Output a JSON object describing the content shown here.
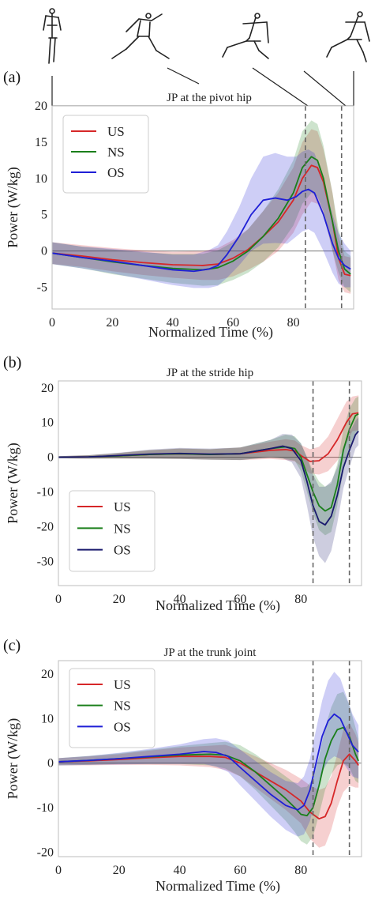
{
  "figure": {
    "stick_figures": [
      "stick-figure-phase-1",
      "stick-figure-phase-2",
      "stick-figure-phase-3",
      "stick-figure-phase-4"
    ],
    "colors": {
      "US": "#d62728",
      "NS": "#1a7f1a",
      "OS": "#1f1fd6",
      "OS_b": "#1a1a6e"
    }
  },
  "chart_data": [
    {
      "type": "line",
      "panel_label": "(a)",
      "title": "JP at the pivot hip",
      "xlabel": "Normalized Time (%)",
      "ylabel": "Power (W/kg)",
      "xlim": [
        0,
        100
      ],
      "ylim": [
        -8,
        20
      ],
      "xticks": [
        "0",
        "20",
        "40",
        "60",
        "80"
      ],
      "yticks": [
        "20",
        "15",
        "10",
        "5",
        "0",
        "-5"
      ],
      "ytick_values": [
        20,
        15,
        10,
        5,
        0,
        -5
      ],
      "vlines": [
        84,
        96
      ],
      "grid": true,
      "legend_position": "top-left",
      "series": [
        {
          "name": "US",
          "color": "#d62728",
          "x": [
            0,
            10,
            20,
            30,
            40,
            50,
            55,
            60,
            65,
            70,
            75,
            80,
            83,
            86,
            88,
            90,
            93,
            95,
            97,
            99
          ],
          "y": [
            -0.3,
            -0.7,
            -1.2,
            -1.6,
            -1.9,
            -2.0,
            -1.8,
            -1.0,
            0.2,
            2.0,
            4.0,
            7.0,
            10.0,
            11.8,
            11.5,
            9.5,
            4.0,
            -1.0,
            -3.2,
            -3.4
          ],
          "band": [
            1.5,
            1.5,
            1.6,
            1.7,
            1.8,
            2.0,
            2.2,
            2.5,
            2.8,
            3.5,
            4.0,
            4.5,
            5.0,
            5.0,
            5.0,
            4.5,
            4.0,
            3.0,
            2.5,
            2.5
          ]
        },
        {
          "name": "NS",
          "color": "#1a7f1a",
          "x": [
            0,
            10,
            20,
            30,
            40,
            50,
            55,
            60,
            65,
            70,
            75,
            80,
            83,
            86,
            88,
            90,
            93,
            95,
            97,
            99
          ],
          "y": [
            -0.3,
            -0.9,
            -1.5,
            -2.0,
            -2.4,
            -2.6,
            -2.3,
            -1.4,
            0.0,
            2.0,
            4.5,
            8.0,
            11.5,
            13.0,
            12.5,
            10.0,
            4.0,
            0.0,
            -2.5,
            -3.2
          ],
          "band": [
            1.5,
            1.5,
            1.7,
            1.8,
            2.0,
            2.2,
            2.4,
            2.6,
            3.0,
            3.5,
            4.0,
            4.5,
            5.0,
            5.0,
            5.0,
            4.5,
            4.0,
            3.0,
            2.5,
            2.5
          ]
        },
        {
          "name": "OS",
          "color": "#1f1fd6",
          "x": [
            0,
            10,
            20,
            30,
            40,
            47,
            52,
            55,
            58,
            62,
            66,
            70,
            74,
            78,
            81,
            83,
            85,
            87,
            90,
            93,
            95,
            97,
            99
          ],
          "y": [
            -0.3,
            -0.9,
            -1.4,
            -2.0,
            -2.6,
            -2.8,
            -2.5,
            -2.0,
            -0.5,
            2.0,
            5.0,
            7.0,
            7.3,
            7.0,
            7.5,
            8.2,
            8.5,
            8.0,
            5.0,
            1.0,
            -1.0,
            -2.0,
            -2.5
          ],
          "band": [
            1.5,
            1.5,
            1.7,
            1.9,
            2.1,
            2.3,
            2.6,
            2.8,
            3.2,
            4.0,
            5.0,
            6.0,
            6.2,
            6.0,
            5.5,
            5.5,
            5.5,
            5.5,
            5.0,
            4.0,
            3.5,
            3.0,
            2.5
          ]
        }
      ]
    },
    {
      "type": "line",
      "panel_label": "(b)",
      "title": "JP at the stride hip",
      "xlabel": "Normalized Time (%)",
      "ylabel": "Power (W/kg)",
      "xlim": [
        0,
        100
      ],
      "ylim": [
        -37,
        22
      ],
      "xticks": [
        "0",
        "20",
        "40",
        "60",
        "80"
      ],
      "yticks": [
        "20",
        "10",
        "0",
        "-10",
        "-20",
        "-30"
      ],
      "ytick_values": [
        20,
        10,
        0,
        -10,
        -20,
        -30
      ],
      "vlines": [
        84,
        96
      ],
      "grid": true,
      "legend_position": "bottom-left",
      "series": [
        {
          "name": "US",
          "color": "#d62728",
          "x": [
            0,
            10,
            20,
            30,
            40,
            50,
            60,
            70,
            75,
            78,
            80,
            83,
            86,
            89,
            92,
            95,
            97,
            99
          ],
          "y": [
            0,
            0.1,
            0.4,
            0.8,
            1.0,
            0.8,
            1.0,
            2.0,
            2.2,
            1.8,
            0.5,
            -1.2,
            -1.0,
            1.0,
            5.0,
            10.0,
            12.5,
            12.8
          ],
          "band": [
            0.3,
            0.5,
            0.8,
            1.2,
            1.5,
            1.5,
            1.8,
            2.5,
            3.0,
            3.0,
            3.0,
            3.5,
            4.0,
            5.0,
            6.0,
            6.0,
            5.0,
            5.0
          ]
        },
        {
          "name": "NS",
          "color": "#1a7f1a",
          "x": [
            0,
            10,
            20,
            30,
            40,
            50,
            60,
            70,
            75,
            78,
            80,
            82,
            84,
            86,
            88,
            90,
            92,
            94,
            96,
            98,
            99
          ],
          "y": [
            0,
            0.1,
            0.4,
            0.8,
            1.0,
            0.8,
            1.0,
            2.5,
            3.0,
            2.5,
            0.0,
            -5.0,
            -10.0,
            -14.0,
            -15.5,
            -14.5,
            -8.0,
            2.0,
            8.0,
            12.0,
            12.5
          ],
          "band": [
            0.3,
            0.5,
            0.8,
            1.2,
            1.5,
            1.5,
            1.8,
            2.5,
            3.5,
            3.5,
            4.0,
            5.0,
            6.0,
            7.0,
            7.0,
            7.0,
            6.0,
            6.0,
            6.0,
            5.0,
            5.0
          ]
        },
        {
          "name": "OS",
          "color": "#1a1a6e",
          "x": [
            0,
            10,
            20,
            30,
            40,
            50,
            60,
            70,
            74,
            77,
            80,
            82,
            84,
            86,
            88,
            90,
            92,
            94,
            96,
            98,
            99
          ],
          "y": [
            0,
            0.1,
            0.5,
            0.9,
            1.1,
            0.9,
            1.0,
            2.5,
            3.2,
            2.5,
            -1.0,
            -7.0,
            -14.0,
            -18.5,
            -19.5,
            -17.0,
            -11.0,
            -3.0,
            2.0,
            6.5,
            7.5
          ],
          "band": [
            0.3,
            0.5,
            0.8,
            1.3,
            1.6,
            1.6,
            1.8,
            2.5,
            3.5,
            4.0,
            5.0,
            7.0,
            9.0,
            10.0,
            11.0,
            10.0,
            8.0,
            6.0,
            5.0,
            4.0,
            4.0
          ]
        }
      ]
    },
    {
      "type": "line",
      "panel_label": "(c)",
      "title": "JP at the trunk joint",
      "xlabel": "Normalized Time (%)",
      "ylabel": "Power (W/kg)",
      "xlim": [
        0,
        100
      ],
      "ylim": [
        -21,
        23
      ],
      "xticks": [
        "0",
        "20",
        "40",
        "60",
        "80"
      ],
      "yticks": [
        "20",
        "10",
        "0",
        "-10",
        "-20"
      ],
      "ytick_values": [
        20,
        10,
        0,
        -10,
        -20
      ],
      "vlines": [
        84,
        96
      ],
      "grid": true,
      "legend_position": "top-left",
      "series": [
        {
          "name": "US",
          "color": "#d62728",
          "x": [
            0,
            10,
            20,
            30,
            40,
            50,
            55,
            60,
            65,
            70,
            75,
            80,
            83,
            86,
            88,
            90,
            92,
            94,
            96,
            98,
            99
          ],
          "y": [
            0.3,
            0.5,
            0.8,
            1.2,
            1.5,
            1.5,
            1.3,
            0.0,
            -2.0,
            -4.0,
            -6.0,
            -8.5,
            -11.0,
            -12.5,
            -12.0,
            -9.0,
            -4.0,
            0.5,
            2.0,
            0.5,
            -0.5
          ],
          "band": [
            0.8,
            1.0,
            1.2,
            1.6,
            2.0,
            2.4,
            2.8,
            3.0,
            3.5,
            4.0,
            4.5,
            5.0,
            6.0,
            6.5,
            6.5,
            6.0,
            6.0,
            7.0,
            7.0,
            6.0,
            5.0
          ]
        },
        {
          "name": "NS",
          "color": "#1a7f1a",
          "x": [
            0,
            10,
            20,
            30,
            40,
            50,
            55,
            60,
            65,
            70,
            75,
            78,
            80,
            82,
            84,
            86,
            88,
            90,
            92,
            94,
            96,
            98,
            99
          ],
          "y": [
            0.3,
            0.6,
            1.0,
            1.4,
            1.8,
            2.0,
            1.8,
            0.5,
            -2.0,
            -5.0,
            -8.0,
            -10.0,
            -11.5,
            -11.8,
            -10.0,
            -5.0,
            1.0,
            5.0,
            7.5,
            8.0,
            6.0,
            2.0,
            0.5
          ],
          "band": [
            0.8,
            1.0,
            1.2,
            1.6,
            2.0,
            2.5,
            3.0,
            3.5,
            4.0,
            4.5,
            5.0,
            5.5,
            6.0,
            6.5,
            6.5,
            6.5,
            7.0,
            7.5,
            8.0,
            8.0,
            7.0,
            6.0,
            5.0
          ]
        },
        {
          "name": "OS",
          "color": "#1f1fd6",
          "x": [
            0,
            10,
            20,
            30,
            40,
            48,
            52,
            56,
            60,
            65,
            70,
            75,
            79,
            81,
            83,
            85,
            87,
            89,
            91,
            93,
            95,
            97,
            99
          ],
          "y": [
            0.3,
            0.6,
            1.0,
            1.5,
            2.0,
            2.6,
            2.4,
            1.5,
            -1.0,
            -4.0,
            -7.0,
            -9.5,
            -10.5,
            -9.5,
            -6.0,
            0.0,
            6.0,
            9.5,
            11.0,
            10.0,
            7.0,
            4.0,
            2.5
          ],
          "band": [
            0.8,
            1.0,
            1.3,
            1.7,
            2.2,
            2.8,
            3.2,
            3.5,
            4.0,
            4.5,
            5.0,
            5.5,
            6.0,
            6.5,
            7.0,
            7.5,
            8.0,
            9.0,
            9.5,
            9.0,
            8.0,
            7.0,
            6.0
          ]
        }
      ]
    }
  ]
}
